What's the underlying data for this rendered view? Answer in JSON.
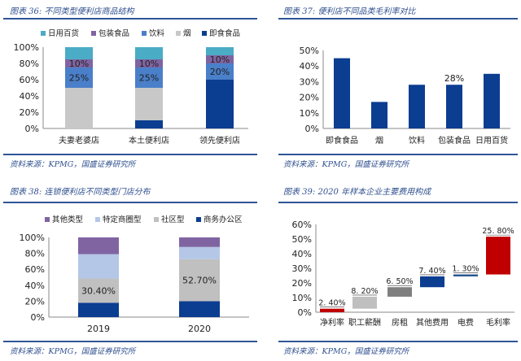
{
  "chart_data": [
    {
      "type": "bar",
      "stacked": true,
      "title": "图表 36: 不同类型便利店商品结构",
      "source": "资料来源：KPMG，国盛证券研究所",
      "categories": [
        "夫妻老婆店",
        "本土便利店",
        "领先便利店"
      ],
      "ylim": [
        0,
        100
      ],
      "yticks": [
        "0%",
        "20%",
        "40%",
        "60%",
        "80%",
        "100%"
      ],
      "legend": "top",
      "series": [
        {
          "name": "即食食品",
          "color": "#0b3d91",
          "values": [
            0,
            10,
            60
          ],
          "labels": [
            "",
            "",
            ""
          ]
        },
        {
          "name": "烟",
          "color": "#c8c8c8",
          "values": [
            50,
            40,
            0
          ],
          "labels": [
            "",
            "",
            ""
          ]
        },
        {
          "name": "饮料",
          "color": "#4a7fc9",
          "values": [
            25,
            25,
            20
          ],
          "labels": [
            "25%",
            "25%",
            "20%"
          ]
        },
        {
          "name": "包装食品",
          "color": "#8064a2",
          "values": [
            10,
            10,
            10
          ],
          "labels": [
            "10%",
            "10%",
            "10%"
          ]
        },
        {
          "name": "日用百货",
          "color": "#4bacc6",
          "values": [
            15,
            15,
            10
          ],
          "labels": [
            "",
            "",
            ""
          ]
        }
      ],
      "legend_order": [
        4,
        3,
        2,
        1,
        0
      ]
    },
    {
      "type": "bar",
      "title": "图表 37: 便利店不同品类毛利率对比",
      "source": "资料来源：KPMG，国盛证券研究所",
      "categories": [
        "即食食品",
        "烟",
        "饮料",
        "包装食品",
        "日用百货"
      ],
      "values": [
        45,
        17,
        28,
        28,
        35
      ],
      "labels": [
        "",
        "",
        "",
        "28%",
        ""
      ],
      "color": "#0b3d91",
      "ylim": [
        0,
        50
      ],
      "yticks": [
        "0%",
        "10%",
        "20%",
        "30%",
        "40%",
        "50%"
      ]
    },
    {
      "type": "bar",
      "stacked": true,
      "title": "图表 38: 连锁便利店不同类型门店分布",
      "source": "资料来源：KPMG，国盛证券研究所",
      "categories": [
        "2019",
        "2020"
      ],
      "ylim": [
        0,
        100
      ],
      "yticks": [
        "0%",
        "20%",
        "40%",
        "60%",
        "80%",
        "100%"
      ],
      "legend": "top",
      "series": [
        {
          "name": "商务办公区",
          "color": "#0b3d91",
          "values": [
            18,
            20
          ],
          "labels": [
            "",
            ""
          ]
        },
        {
          "name": "社区型",
          "color": "#c0c0c0",
          "values": [
            30.4,
            52.7
          ],
          "labels": [
            "30.40%",
            "52.70%"
          ]
        },
        {
          "name": "特定商圈型",
          "color": "#b4c7e7",
          "values": [
            30.6,
            15.3
          ],
          "labels": [
            "",
            ""
          ]
        },
        {
          "name": "其他类型",
          "color": "#8064a2",
          "values": [
            21,
            12
          ],
          "labels": [
            "",
            ""
          ]
        }
      ],
      "legend_order": [
        3,
        2,
        1,
        0
      ]
    },
    {
      "type": "waterfall",
      "title": "图表 39: 2020 年样本企业主要费用构成",
      "source": "资料来源：KPMG，国盛证券研究所",
      "categories": [
        "净利率",
        "职工薪酬",
        "房租",
        "其他费用",
        "电费",
        "毛利率"
      ],
      "base": [
        0,
        2.4,
        10.6,
        17.1,
        24.5,
        25.8
      ],
      "values": [
        2.4,
        8.2,
        6.5,
        7.4,
        1.3,
        25.8
      ],
      "labels": [
        "2. 40%",
        "8. 20%",
        "6. 50%",
        "7. 40%",
        "1. 30%",
        "25. 80%"
      ],
      "colors": [
        "#c00000",
        "#bfbfbf",
        "#7f7f7f",
        "#0b3d91",
        "#1f4e8c",
        "#c00000"
      ],
      "ylim": [
        0,
        60
      ],
      "yticks": [
        "0%",
        "10%",
        "20%",
        "30%",
        "40%",
        "50%",
        "60%"
      ]
    }
  ]
}
